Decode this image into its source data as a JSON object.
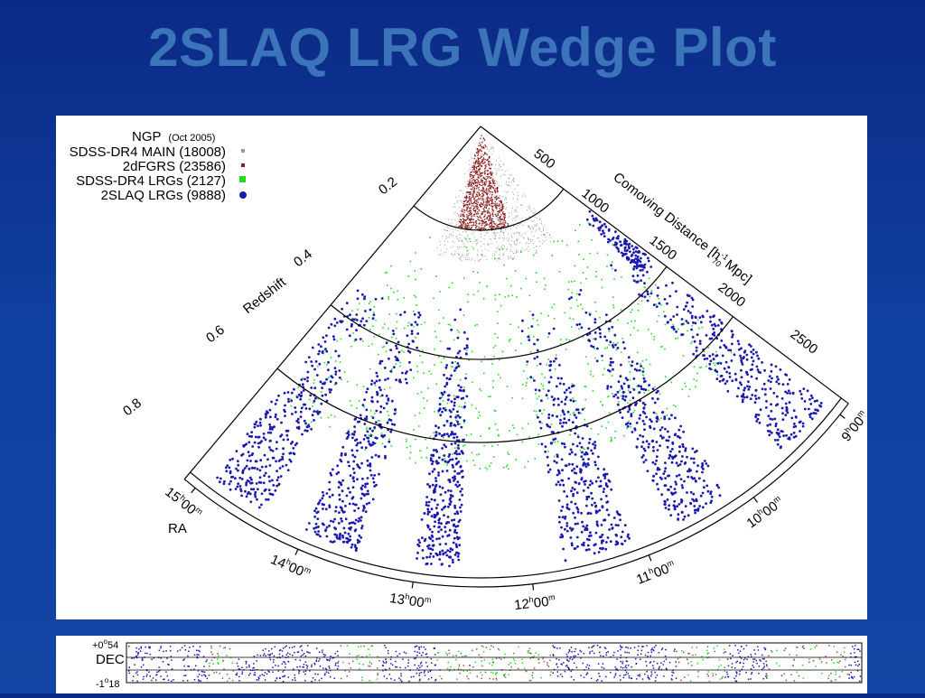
{
  "slide": {
    "title": "2SLAQ LRG Wedge Plot"
  },
  "legend": {
    "header": "NGP",
    "header_note": "(Oct 2005)",
    "entries": [
      {
        "label": "SDSS-DR4 MAIN (18008)",
        "color": "#9a9a9a",
        "marker": "square-small"
      },
      {
        "label": "2dFGRS (23586)",
        "color": "#8b1a1a",
        "marker": "square-small"
      },
      {
        "label": "SDSS-DR4 LRGs (2127)",
        "color": "#22dd22",
        "marker": "square"
      },
      {
        "label": "2SLAQ LRGs (9888)",
        "color": "#1a1ab0",
        "marker": "circle"
      }
    ]
  },
  "wedge": {
    "redshift_label": "Redshift",
    "redshift_ticks": [
      "0.2",
      "0.4",
      "0.6",
      "0.8"
    ],
    "distance_label": "Comoving Distance [h70-1 Mpc]",
    "distance_label_parts": {
      "pre": "Comoving Distance [h",
      "sup": "-1",
      "sub": "70",
      "post": " Mpc]"
    },
    "distance_ticks": [
      "500",
      "1000",
      "1500",
      "2000",
      "2500"
    ],
    "ra_label": "RA",
    "ra_ticks": [
      {
        "h": "15",
        "m": "00"
      },
      {
        "h": "14",
        "m": "00"
      },
      {
        "h": "13",
        "m": "00"
      },
      {
        "h": "12",
        "m": "00"
      },
      {
        "h": "11",
        "m": "00"
      },
      {
        "h": "10",
        "m": "00"
      },
      {
        "h": "9",
        "m": "00"
      }
    ]
  },
  "strip": {
    "dec_label": "DEC",
    "dec_top": {
      "deg": "+0",
      "min": "54"
    },
    "dec_bottom": {
      "deg": "-1",
      "min": "18"
    }
  }
}
